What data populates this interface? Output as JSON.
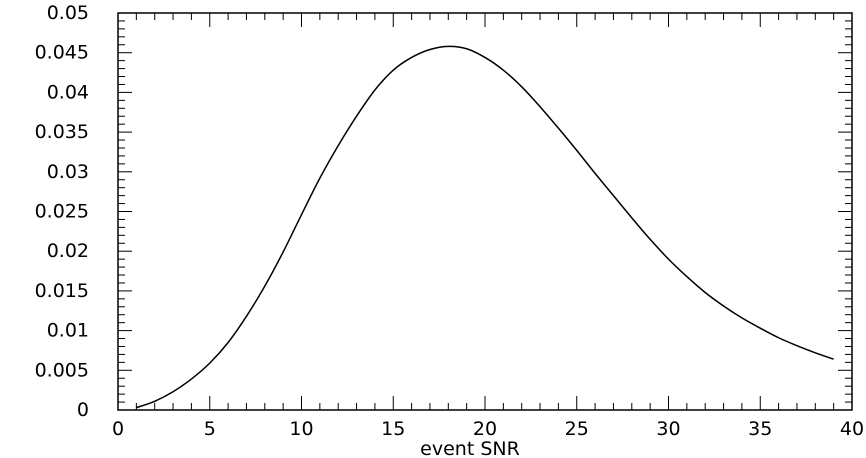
{
  "chart_data": {
    "type": "line",
    "title": "",
    "xlabel": "event SNR",
    "ylabel": "",
    "xlim": [
      0,
      40
    ],
    "ylim": [
      0,
      0.05
    ],
    "grid": false,
    "x_ticks": [
      0,
      5,
      10,
      15,
      20,
      25,
      30,
      35,
      40
    ],
    "x_tick_labels": [
      "0",
      "5",
      "10",
      "15",
      "20",
      "25",
      "30",
      "35",
      "40"
    ],
    "y_ticks": [
      0,
      0.005,
      0.01,
      0.015,
      0.02,
      0.025,
      0.03,
      0.035,
      0.04,
      0.045,
      0.05
    ],
    "y_tick_labels": [
      "0",
      "0.005",
      "0.01",
      "0.015",
      "0.02",
      "0.025",
      "0.03",
      "0.035",
      "0.04",
      "0.045",
      "0.05"
    ],
    "series": [
      {
        "x": [
          1,
          2,
          3,
          4,
          5,
          6,
          7,
          8,
          9,
          10,
          11,
          12,
          13,
          14,
          15,
          16,
          17,
          18,
          19,
          20,
          21,
          22,
          23,
          24,
          25,
          26,
          27,
          28,
          29,
          30,
          31,
          32,
          33,
          34,
          35,
          36,
          37,
          38,
          39
        ],
        "y": [
          0.0003,
          0.0011,
          0.0023,
          0.0039,
          0.0059,
          0.0085,
          0.0118,
          0.0156,
          0.0199,
          0.0246,
          0.0292,
          0.0333,
          0.037,
          0.0403,
          0.0428,
          0.0444,
          0.0454,
          0.0458,
          0.0455,
          0.0444,
          0.0428,
          0.0407,
          0.0382,
          0.0355,
          0.0327,
          0.0298,
          0.027,
          0.0242,
          0.0215,
          0.019,
          0.0168,
          0.0148,
          0.0131,
          0.0116,
          0.0103,
          0.0091,
          0.0081,
          0.0072,
          0.0064
        ]
      }
    ]
  }
}
